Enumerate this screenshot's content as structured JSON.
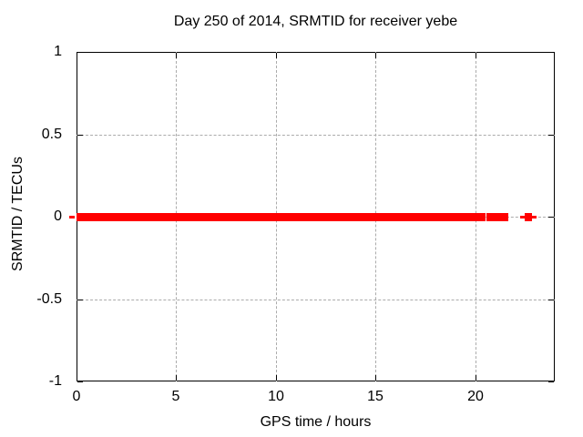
{
  "chart_data": {
    "type": "scatter",
    "title": "Day 250 of 2014, SRMTID for receiver yebe",
    "xlabel": "GPS time / hours",
    "ylabel": "SRMTID / TECUs",
    "xlim": [
      0,
      24
    ],
    "ylim": [
      -1,
      1
    ],
    "grid": true,
    "grid_color": "#ababab",
    "marker_color": "#ff0000",
    "xticks": [
      {
        "value": 0,
        "label": "0"
      },
      {
        "value": 5,
        "label": "5"
      },
      {
        "value": 10,
        "label": "10"
      },
      {
        "value": 15,
        "label": "15"
      },
      {
        "value": 20,
        "label": "20"
      }
    ],
    "yticks": [
      {
        "value": -1,
        "label": "-1"
      },
      {
        "value": -0.5,
        "label": "-0.5"
      },
      {
        "value": 0,
        "label": "0"
      },
      {
        "value": 0.5,
        "label": "0.5"
      },
      {
        "value": 1,
        "label": "1"
      }
    ],
    "series": [
      {
        "name": "SRMTID",
        "y_value": 0,
        "note": "dense points at SRMTID=0 from 0h to ~21.7h, brief gap near 20.5h, isolated cluster near 22.7h",
        "segments": [
          {
            "start": -0.37,
            "end": -0.09,
            "thin": true
          },
          {
            "start": 0,
            "end": 20.52,
            "thin": false
          },
          {
            "start": 20.57,
            "end": 21.68,
            "thin": false
          },
          {
            "start": 22.26,
            "end": 22.49,
            "thin": true
          },
          {
            "start": 22.49,
            "end": 22.86,
            "thin": false
          },
          {
            "start": 22.86,
            "end": 23.08,
            "thin": true
          }
        ]
      }
    ]
  }
}
